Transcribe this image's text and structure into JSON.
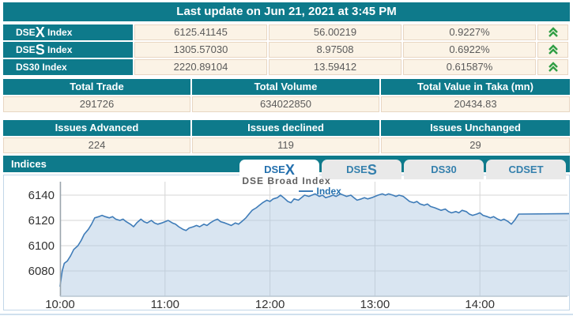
{
  "header": {
    "last_update": "Last update on Jun 21, 2021 at 3:45 PM"
  },
  "indices_table": {
    "rows": [
      {
        "name_prefix": "DSE",
        "name_big": "X",
        "name_suffix": " Index",
        "value": "6125.41145",
        "change": "56.00219",
        "percent": "0.9227%",
        "direction": "up"
      },
      {
        "name_prefix": "DSE",
        "name_big": "S",
        "name_suffix": " Index",
        "value": "1305.57030",
        "change": "8.97508",
        "percent": "0.6922%",
        "direction": "up"
      },
      {
        "name_prefix": "DS30",
        "name_big": "",
        "name_suffix": " Index",
        "value": "2220.89104",
        "change": "13.59412",
        "percent": "0.61587%",
        "direction": "up"
      }
    ]
  },
  "totals_table": {
    "headers": [
      "Total Trade",
      "Total Volume",
      "Total Value in Taka (mn)"
    ],
    "values": [
      "291726",
      "634022850",
      "20434.83"
    ]
  },
  "issues_table": {
    "headers": [
      "Issues Advanced",
      "Issues declined",
      "Issues Unchanged"
    ],
    "values": [
      "224",
      "119",
      "29"
    ]
  },
  "indices_section": {
    "title": "Indices",
    "tabs": [
      {
        "prefix": "DSE",
        "big": "X",
        "active": true
      },
      {
        "prefix": "DSE",
        "big": "S",
        "active": false
      },
      {
        "prefix": "DS30",
        "big": "",
        "active": false
      },
      {
        "prefix": "CDSET",
        "big": "",
        "active": false
      }
    ]
  },
  "chart_data": {
    "type": "area",
    "title": "DSE Broad Index",
    "legend_label": "Index",
    "x_ticks": [
      "10:00",
      "11:00",
      "12:00",
      "13:00",
      "14:00"
    ],
    "y_ticks": [
      6080,
      6100,
      6120,
      6140
    ],
    "ylim": [
      6060,
      6148
    ],
    "xlim_hours": [
      10.0,
      14.85
    ],
    "grid": true,
    "legend_position": "top",
    "line_color": "#3f7cb8",
    "fill_color": "rgba(170,197,225,0.45)",
    "points": [
      [
        10.0,
        6068
      ],
      [
        10.02,
        6080
      ],
      [
        10.04,
        6086
      ],
      [
        10.07,
        6088
      ],
      [
        10.1,
        6092
      ],
      [
        10.13,
        6097
      ],
      [
        10.17,
        6100
      ],
      [
        10.2,
        6104
      ],
      [
        10.23,
        6109
      ],
      [
        10.27,
        6113
      ],
      [
        10.3,
        6117
      ],
      [
        10.33,
        6122
      ],
      [
        10.37,
        6123
      ],
      [
        10.4,
        6124
      ],
      [
        10.43,
        6123
      ],
      [
        10.47,
        6122
      ],
      [
        10.5,
        6123
      ],
      [
        10.53,
        6121
      ],
      [
        10.57,
        6120
      ],
      [
        10.6,
        6121
      ],
      [
        10.63,
        6119
      ],
      [
        10.67,
        6117
      ],
      [
        10.7,
        6115
      ],
      [
        10.73,
        6118
      ],
      [
        10.77,
        6121
      ],
      [
        10.8,
        6119
      ],
      [
        10.83,
        6118
      ],
      [
        10.87,
        6120
      ],
      [
        10.9,
        6118
      ],
      [
        10.93,
        6117
      ],
      [
        10.97,
        6118
      ],
      [
        11.0,
        6119
      ],
      [
        11.03,
        6120
      ],
      [
        11.07,
        6118
      ],
      [
        11.1,
        6117
      ],
      [
        11.13,
        6115
      ],
      [
        11.17,
        6113
      ],
      [
        11.2,
        6112
      ],
      [
        11.23,
        6114
      ],
      [
        11.27,
        6115
      ],
      [
        11.3,
        6116
      ],
      [
        11.33,
        6115
      ],
      [
        11.37,
        6117
      ],
      [
        11.4,
        6116
      ],
      [
        11.43,
        6118
      ],
      [
        11.47,
        6120
      ],
      [
        11.5,
        6121
      ],
      [
        11.53,
        6119
      ],
      [
        11.57,
        6118
      ],
      [
        11.6,
        6117
      ],
      [
        11.63,
        6116
      ],
      [
        11.67,
        6118
      ],
      [
        11.7,
        6117
      ],
      [
        11.73,
        6119
      ],
      [
        11.77,
        6122
      ],
      [
        11.8,
        6125
      ],
      [
        11.83,
        6128
      ],
      [
        11.87,
        6130
      ],
      [
        11.9,
        6132
      ],
      [
        11.93,
        6134
      ],
      [
        11.97,
        6136
      ],
      [
        12.0,
        6135
      ],
      [
        12.03,
        6137
      ],
      [
        12.07,
        6138
      ],
      [
        12.1,
        6140
      ],
      [
        12.13,
        6138
      ],
      [
        12.17,
        6135
      ],
      [
        12.2,
        6134
      ],
      [
        12.23,
        6137
      ],
      [
        12.27,
        6136
      ],
      [
        12.3,
        6138
      ],
      [
        12.33,
        6140
      ],
      [
        12.37,
        6139
      ],
      [
        12.4,
        6140
      ],
      [
        12.43,
        6141
      ],
      [
        12.47,
        6139
      ],
      [
        12.5,
        6140
      ],
      [
        12.53,
        6138
      ],
      [
        12.57,
        6139
      ],
      [
        12.6,
        6140
      ],
      [
        12.63,
        6139
      ],
      [
        12.67,
        6141
      ],
      [
        12.7,
        6140
      ],
      [
        12.73,
        6139
      ],
      [
        12.77,
        6140
      ],
      [
        12.8,
        6138
      ],
      [
        12.83,
        6136
      ],
      [
        12.87,
        6137
      ],
      [
        12.9,
        6138
      ],
      [
        12.93,
        6137
      ],
      [
        12.97,
        6138
      ],
      [
        13.0,
        6139
      ],
      [
        13.03,
        6140
      ],
      [
        13.07,
        6141
      ],
      [
        13.1,
        6140
      ],
      [
        13.13,
        6141
      ],
      [
        13.17,
        6140
      ],
      [
        13.2,
        6139
      ],
      [
        13.23,
        6140
      ],
      [
        13.27,
        6139
      ],
      [
        13.3,
        6137
      ],
      [
        13.33,
        6135
      ],
      [
        13.37,
        6134
      ],
      [
        13.4,
        6135
      ],
      [
        13.43,
        6133
      ],
      [
        13.47,
        6132
      ],
      [
        13.5,
        6133
      ],
      [
        13.53,
        6131
      ],
      [
        13.57,
        6130
      ],
      [
        13.6,
        6129
      ],
      [
        13.63,
        6128
      ],
      [
        13.67,
        6129
      ],
      [
        13.7,
        6127
      ],
      [
        13.73,
        6126
      ],
      [
        13.77,
        6127
      ],
      [
        13.8,
        6126
      ],
      [
        13.83,
        6128
      ],
      [
        13.87,
        6127
      ],
      [
        13.9,
        6125
      ],
      [
        13.93,
        6124
      ],
      [
        13.97,
        6125
      ],
      [
        14.0,
        6126
      ],
      [
        14.03,
        6124
      ],
      [
        14.07,
        6123
      ],
      [
        14.1,
        6122
      ],
      [
        14.13,
        6123
      ],
      [
        14.17,
        6121
      ],
      [
        14.2,
        6120
      ],
      [
        14.23,
        6121
      ],
      [
        14.27,
        6119
      ],
      [
        14.3,
        6117
      ],
      [
        14.33,
        6120
      ],
      [
        14.37,
        6125
      ],
      [
        14.85,
        6125.4
      ]
    ]
  },
  "colors": {
    "teal": "#0e7a8b",
    "cream": "#fbf3e6",
    "cell_border": "#e8d6c3",
    "green_arrow": "#2f9e44",
    "line_blue": "#3f7cb8",
    "tab_text": "#3580ad",
    "value_text": "#5a5a5a"
  }
}
